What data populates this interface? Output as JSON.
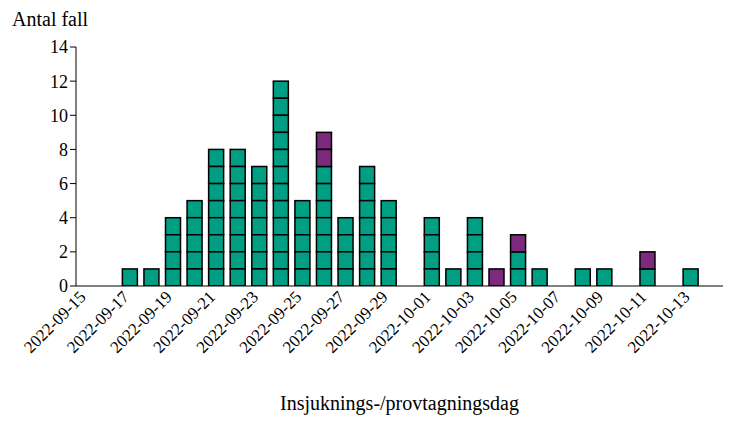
{
  "chart_data": {
    "type": "bar",
    "stacked": true,
    "x_label": "Insjuknings-/provtagningsdag",
    "y_label": "Antal fall",
    "categories": [
      "2022-09-15",
      null,
      "2022-09-17",
      null,
      "2022-09-19",
      null,
      "2022-09-21",
      null,
      "2022-09-23",
      null,
      "2022-09-25",
      null,
      "2022-09-27",
      null,
      "2022-09-29",
      null,
      "2022-10-01",
      null,
      "2022-10-03",
      null,
      "2022-10-05",
      null,
      "2022-10-07",
      null,
      "2022-10-09",
      null,
      "2022-10-11",
      null,
      "2022-10-13",
      null
    ],
    "series": [
      {
        "color": "#009e82",
        "values": [
          0,
          0,
          1,
          1,
          4,
          5,
          8,
          8,
          7,
          12,
          5,
          7,
          4,
          7,
          5,
          0,
          4,
          1,
          4,
          0,
          2,
          1,
          0,
          1,
          1,
          0,
          1,
          0,
          1,
          0
        ]
      },
      {
        "color": "#7b2a7d",
        "values": [
          0,
          0,
          0,
          0,
          0,
          0,
          0,
          0,
          0,
          0,
          0,
          2,
          0,
          0,
          0,
          0,
          0,
          0,
          0,
          1,
          1,
          0,
          0,
          0,
          0,
          0,
          1,
          0,
          0,
          0
        ]
      }
    ],
    "ylim": [
      0,
      14
    ],
    "yticks": [
      0,
      2,
      4,
      6,
      8,
      10,
      12,
      14
    ],
    "grid": false
  }
}
